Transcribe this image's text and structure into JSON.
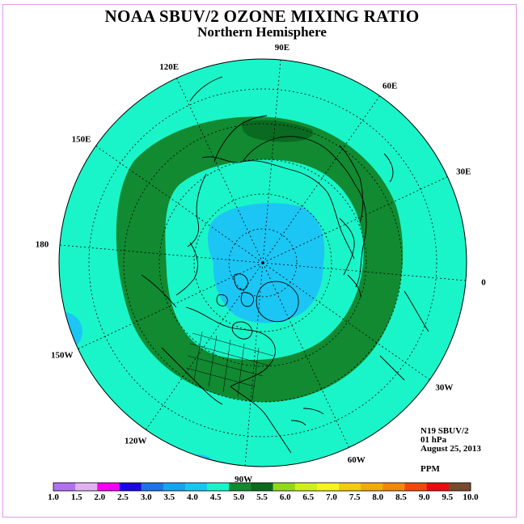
{
  "header": {
    "title": "NOAA SBUV/2 OZONE MIXING RATIO",
    "subtitle": "Northern Hemisphere"
  },
  "map": {
    "projection": "north-polar-stereographic",
    "longitude_labels": [
      {
        "deg": 90,
        "text": "90E"
      },
      {
        "deg": 60,
        "text": "60E"
      },
      {
        "deg": 30,
        "text": "30E"
      },
      {
        "deg": 0,
        "text": "0"
      },
      {
        "deg": -30,
        "text": "30W"
      },
      {
        "deg": -60,
        "text": "60W"
      },
      {
        "deg": -90,
        "text": "90W"
      },
      {
        "deg": -120,
        "text": "120W"
      },
      {
        "deg": -150,
        "text": "150W"
      },
      {
        "deg": 180,
        "text": "180"
      },
      {
        "deg": 150,
        "text": "150E"
      },
      {
        "deg": 120,
        "text": "120E"
      }
    ],
    "colors": {
      "background_band": "#19f5c9",
      "band_5_5_6_0": "#118a32",
      "band_4_0_4_5": "#1bc6f5",
      "coast": "#000000"
    }
  },
  "info": {
    "satellite": "N19 SBUV/2",
    "level": "01 hPa",
    "date": "August 25, 2013",
    "units": "PPM"
  },
  "color_scale": {
    "labels": [
      "1.0",
      "1.5",
      "2.0",
      "2.5",
      "3.0",
      "3.5",
      "4.0",
      "4.5",
      "5.0",
      "5.5",
      "6.0",
      "6.5",
      "7.0",
      "7.5",
      "8.0",
      "8.5",
      "9.0",
      "9.5",
      "10.0"
    ],
    "colors": [
      "#b072f0",
      "#e0b2f2",
      "#f400f2",
      "#1c06e6",
      "#1c74e6",
      "#17a3ef",
      "#19c6f2",
      "#19f5c9",
      "#118a32",
      "#0a6a21",
      "#93d81e",
      "#cff01c",
      "#f5f51c",
      "#f5cb0e",
      "#f2ab0c",
      "#f2870c",
      "#f2480c",
      "#ee0a0a",
      "#7a4a30"
    ]
  }
}
